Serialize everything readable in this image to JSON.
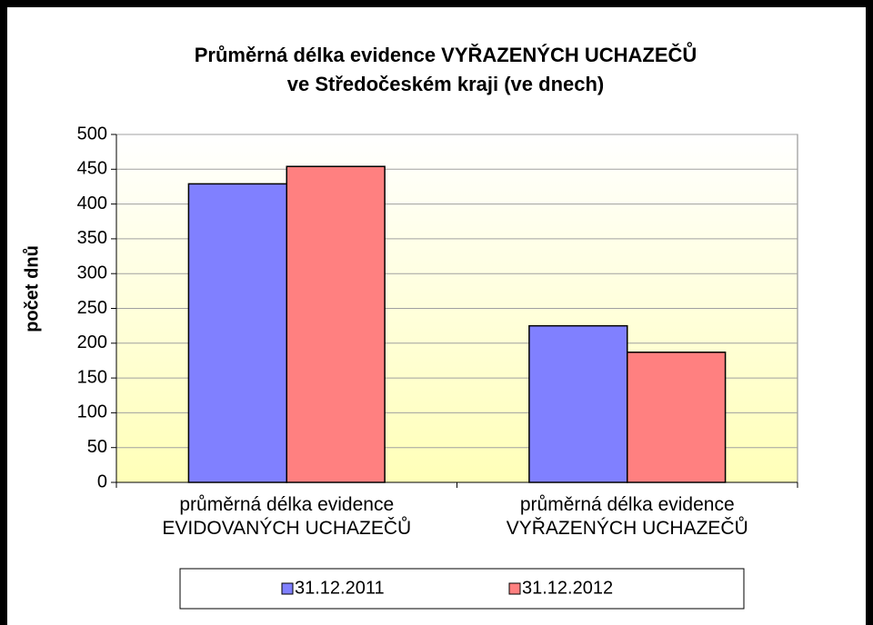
{
  "chart_data": {
    "type": "bar",
    "title": [
      "Průměrná délka evidence VYŘAZENÝCH UCHAZEČŮ",
      "ve Středočeském kraji (ve dnech)"
    ],
    "y_label": "počet dnů",
    "categories": [
      "průměrná délka evidence EVIDOVANÝCH UCHAZEČŮ",
      "průměrná délka evidence VYŘAZENÝCH UCHAZEČŮ"
    ],
    "series": [
      {
        "name": "31.12.2011",
        "color": "#8080ff",
        "values": [
          429,
          225
        ]
      },
      {
        "name": "31.12.2012",
        "color": "#ff8080",
        "values": [
          454,
          187
        ]
      }
    ],
    "ylim": [
      0,
      500
    ],
    "yticks": [
      0,
      50,
      100,
      150,
      200,
      250,
      300,
      350,
      400,
      450,
      500
    ],
    "grid": true,
    "legend": "bottom"
  }
}
